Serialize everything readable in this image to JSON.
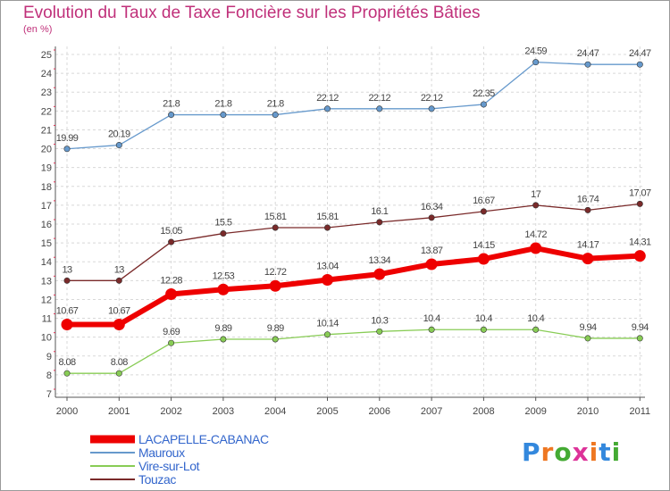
{
  "title": "Evolution du Taux de Taxe Foncière sur les Propriétés Bâties",
  "subtitle": "(en %)",
  "logo_text": "Proxiti",
  "chart_data": {
    "type": "line",
    "title": "Evolution du Taux de Taxe Foncière sur les Propriétés Bâties",
    "ylabel": "(en %)",
    "xlabel": "",
    "ylim": [
      7,
      25
    ],
    "yticks": [
      "7",
      "8",
      "9",
      "10",
      "11",
      "12",
      "13",
      "14",
      "15",
      "16",
      "17",
      "18",
      "19",
      "20",
      "21",
      "22",
      "23",
      "24",
      "25"
    ],
    "x": [
      "2000",
      "2001",
      "2002",
      "2003",
      "2004",
      "2005",
      "2006",
      "2007",
      "2008",
      "2009",
      "2010",
      "2011"
    ],
    "grid": true,
    "legend": "bottom-left",
    "series": [
      {
        "name": "Mauroux",
        "color": "#6699cc",
        "values": [
          19.99,
          20.19,
          21.8,
          21.8,
          21.8,
          22.12,
          22.12,
          22.12,
          22.35,
          24.59,
          24.47,
          24.47
        ],
        "labels": [
          "19.99",
          "20.19",
          "21.8",
          "21.8",
          "21.8",
          "22.12",
          "22.12",
          "22.12",
          "22.35",
          "24.59",
          "24.47",
          "24.47"
        ]
      },
      {
        "name": "Touzac",
        "color": "#7a2a2a",
        "values": [
          13,
          13,
          15.05,
          15.5,
          15.81,
          15.81,
          16.1,
          16.34,
          16.67,
          17,
          16.74,
          17.07
        ],
        "labels": [
          "13",
          "13",
          "15.05",
          "15.5",
          "15.81",
          "15.81",
          "16.1",
          "16.34",
          "16.67",
          "17",
          "16.74",
          "17.07"
        ]
      },
      {
        "name": "LACAPELLE-CABANAC",
        "color": "#ee0000",
        "values": [
          10.67,
          10.67,
          12.28,
          12.53,
          12.72,
          13.04,
          13.34,
          13.87,
          14.15,
          14.72,
          14.17,
          14.31
        ],
        "labels": [
          "10.67",
          "10.67",
          "12.28",
          "12.53",
          "12.72",
          "13.04",
          "13.34",
          "13.87",
          "14.15",
          "14.72",
          "14.17",
          "14.31"
        ]
      },
      {
        "name": "Vire-sur-Lot",
        "color": "#88cc55",
        "values": [
          8.08,
          8.08,
          9.69,
          9.89,
          9.89,
          10.14,
          10.3,
          10.4,
          10.4,
          10.4,
          9.94,
          9.94
        ],
        "labels": [
          "8.08",
          "8.08",
          "9.69",
          "9.89",
          "9.89",
          "10.14",
          "10.3",
          "10.4",
          "10.4",
          "10.4",
          "9.94",
          "9.94"
        ]
      }
    ],
    "legend_entries": [
      {
        "name": "LACAPELLE-CABANAC",
        "color": "#ee0000"
      },
      {
        "name": "Mauroux",
        "color": "#6699cc"
      },
      {
        "name": "Vire-sur-Lot",
        "color": "#88cc55"
      },
      {
        "name": "Touzac",
        "color": "#7a2a2a"
      }
    ]
  }
}
